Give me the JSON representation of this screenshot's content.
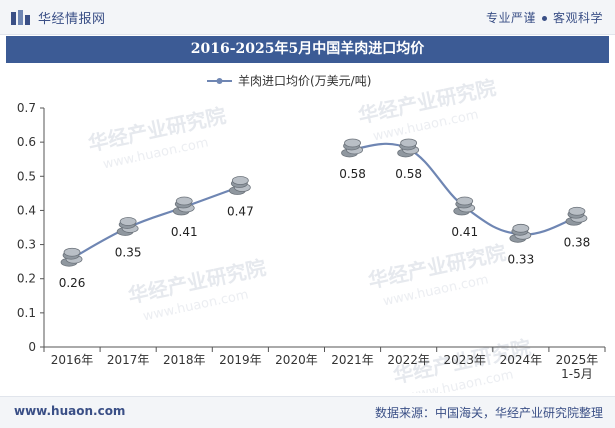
{
  "header": {
    "brand": "华经情报网",
    "tagline_left": "专业严谨",
    "tagline_right": "客观科学"
  },
  "watermark": "华经产业研究院",
  "watermark_url": "www.huaon.com",
  "chart_data": {
    "type": "line",
    "title": "2016-2025年5月中国羊肉进口均价",
    "legend": "羊肉进口均价(万美元/吨)",
    "categories": [
      "2016年",
      "2017年",
      "2018年",
      "2019年",
      "2020年",
      "2021年",
      "2022年",
      "2023年",
      "2024年",
      "2025年\n1-5月"
    ],
    "values": [
      0.26,
      0.35,
      0.41,
      0.47,
      null,
      0.58,
      0.58,
      0.41,
      0.33,
      0.38
    ],
    "value_labels": [
      "0.26",
      "0.35",
      "0.41",
      "0.47",
      "",
      "0.58",
      "0.58",
      "0.41",
      "0.33",
      "0.38"
    ],
    "ylim": [
      0,
      0.7
    ],
    "yticks": [
      "0",
      "0.1",
      "0.2",
      "0.3",
      "0.4",
      "0.5",
      "0.6",
      "0.7"
    ],
    "line_color": "#6f86b3",
    "marker_color": "#9aa3ad"
  },
  "footer": {
    "website": "www.huaon.com",
    "source": "数据来源：中国海关，华经产业研究院整理"
  }
}
